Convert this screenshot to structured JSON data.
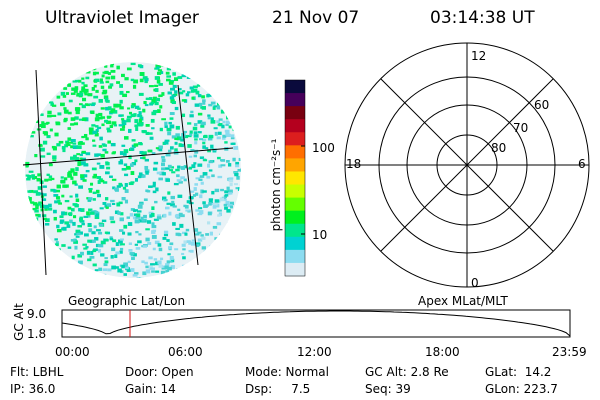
{
  "header": {
    "title": "Ultraviolet Imager",
    "date": "21 Nov 07",
    "time": "03:14:38 UT"
  },
  "left_panel": {
    "label": "Geographic Lat/Lon"
  },
  "colorbar": {
    "unit_label": "photon cm⁻²s⁻¹",
    "ticks": [
      "100",
      "10"
    ],
    "colors": [
      "#0a0a3c",
      "#46005a",
      "#780010",
      "#b4001e",
      "#dc1e1e",
      "#ff6e00",
      "#ffa500",
      "#ffe600",
      "#c8ff00",
      "#64ff00",
      "#00f01e",
      "#00e68c",
      "#00d2d2",
      "#8cdcf0",
      "#dcecf4"
    ]
  },
  "polar_plot": {
    "label": "Apex MLat/MLT",
    "mlt_labels": {
      "top": "12",
      "left": "18",
      "right": "6",
      "bottom": "0"
    },
    "lat_labels": [
      "60",
      "70",
      "80"
    ]
  },
  "altitude_plot": {
    "ylabel": "GC Alt",
    "y_ticks": [
      "9.0",
      "1.8"
    ],
    "x_ticks": [
      "00:00",
      "06:00",
      "12:00",
      "18:00",
      "23:59"
    ],
    "current_time_marker": "03:14"
  },
  "info": {
    "row1": [
      "Flt: LBHL",
      "Door: Open",
      "Mode: Normal",
      "GC Alt: 2.8 Re",
      "GLat:  14.2"
    ],
    "row2": [
      "IP: 36.0",
      "Gain: 14",
      "Dsp:     7.5",
      "Seq: 39",
      "GLon: 223.7"
    ]
  },
  "colors": {
    "marker": "#d01010",
    "low_emission": "#dcecf4",
    "mid_emission": "#00e68c"
  }
}
